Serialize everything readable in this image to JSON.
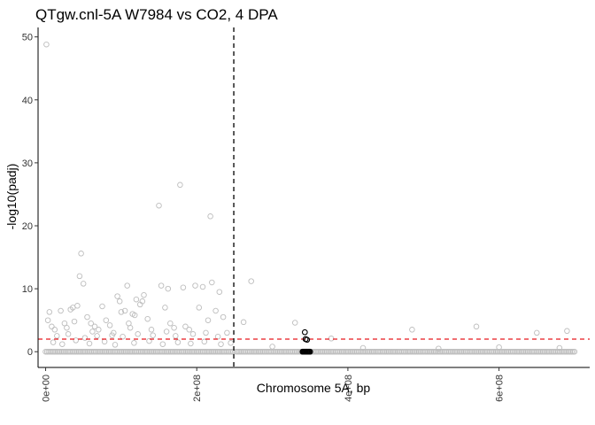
{
  "chart_data": {
    "type": "scatter",
    "title": "QTgw.cnl-5A W7984 vs CO2, 4 DPA",
    "xlabel": "Chromosome 5A, bp",
    "ylabel": "-log10(padj)",
    "xlim": [
      -10000000,
      720000000
    ],
    "ylim": [
      -2.5,
      51.5
    ],
    "x_ticks": [
      0,
      200000000,
      400000000,
      600000000
    ],
    "x_tick_labels": [
      "0e+00",
      "2e+08",
      "4e+08",
      "6e+08"
    ],
    "y_ticks": [
      0,
      10,
      20,
      30,
      40,
      50
    ],
    "y_tick_labels": [
      "0",
      "10",
      "20",
      "30",
      "40",
      "50"
    ],
    "grid": false,
    "legend": "none",
    "colors": {
      "points": "#bdbdbd",
      "highlight": "#000000",
      "threshold": "#e8191f",
      "vline": "#000000"
    },
    "threshold_y": 2,
    "vline_x": 249000000,
    "series": [
      {
        "points": [
          [
            1000000,
            48.8
          ],
          [
            5000000,
            6.3
          ],
          [
            20000000,
            6.5
          ],
          [
            33000000,
            6.7
          ],
          [
            45000000,
            12
          ],
          [
            50000000,
            10.8
          ],
          [
            47000000,
            15.6
          ],
          [
            36000000,
            7
          ],
          [
            42000000,
            7.3
          ],
          [
            3000000,
            5
          ],
          [
            8000000,
            4
          ],
          [
            12000000,
            3.5
          ],
          [
            25000000,
            4.5
          ],
          [
            28000000,
            3.8
          ],
          [
            38000000,
            4.8
          ],
          [
            55000000,
            5.5
          ],
          [
            60000000,
            4.5
          ],
          [
            62000000,
            3.2
          ],
          [
            65000000,
            4
          ],
          [
            70000000,
            3.5
          ],
          [
            75000000,
            7.2
          ],
          [
            80000000,
            5
          ],
          [
            85000000,
            4.2
          ],
          [
            90000000,
            3
          ],
          [
            95000000,
            8.8
          ],
          [
            98000000,
            8
          ],
          [
            100000000,
            6.3
          ],
          [
            105000000,
            6.5
          ],
          [
            108000000,
            10.5
          ],
          [
            110000000,
            4.5
          ],
          [
            112000000,
            3.8
          ],
          [
            115000000,
            6
          ],
          [
            118000000,
            5.8
          ],
          [
            120000000,
            8.3
          ],
          [
            125000000,
            7.5
          ],
          [
            128000000,
            8
          ],
          [
            130000000,
            9
          ],
          [
            135000000,
            5.2
          ],
          [
            140000000,
            3.5
          ],
          [
            150000000,
            23.2
          ],
          [
            153000000,
            10.5
          ],
          [
            158000000,
            7
          ],
          [
            162000000,
            10
          ],
          [
            165000000,
            4.5
          ],
          [
            170000000,
            3.8
          ],
          [
            178000000,
            26.5
          ],
          [
            182000000,
            10.2
          ],
          [
            185000000,
            4
          ],
          [
            190000000,
            3.5
          ],
          [
            198000000,
            10.5
          ],
          [
            203000000,
            7
          ],
          [
            208000000,
            10.3
          ],
          [
            215000000,
            5
          ],
          [
            218000000,
            21.5
          ],
          [
            220000000,
            11
          ],
          [
            225000000,
            6.5
          ],
          [
            230000000,
            9.5
          ],
          [
            235000000,
            5.5
          ],
          [
            240000000,
            3
          ],
          [
            15000000,
            2.5
          ],
          [
            30000000,
            2.8
          ],
          [
            52000000,
            2.2
          ],
          [
            68000000,
            2.5
          ],
          [
            88000000,
            2.6
          ],
          [
            102000000,
            2.4
          ],
          [
            122000000,
            2.8
          ],
          [
            142000000,
            2.6
          ],
          [
            160000000,
            3.2
          ],
          [
            172000000,
            2.5
          ],
          [
            195000000,
            2.8
          ],
          [
            212000000,
            3
          ],
          [
            228000000,
            2.4
          ],
          [
            10000000,
            1.5
          ],
          [
            22000000,
            1.2
          ],
          [
            40000000,
            1.8
          ],
          [
            58000000,
            1.3
          ],
          [
            78000000,
            1.6
          ],
          [
            92000000,
            1.1
          ],
          [
            117000000,
            1.4
          ],
          [
            137000000,
            1.7
          ],
          [
            155000000,
            1.2
          ],
          [
            175000000,
            1.5
          ],
          [
            192000000,
            1.3
          ],
          [
            210000000,
            1.6
          ],
          [
            232000000,
            1.2
          ],
          [
            245000000,
            1.4
          ],
          [
            262000000,
            4.7
          ],
          [
            272000000,
            11.2
          ],
          [
            330000000,
            4.6
          ],
          [
            345000000,
            2
          ],
          [
            378000000,
            2.1
          ],
          [
            485000000,
            3.5
          ],
          [
            570000000,
            4
          ],
          [
            650000000,
            3
          ],
          [
            690000000,
            3.3
          ],
          [
            300000000,
            0.8
          ],
          [
            420000000,
            0.6
          ],
          [
            520000000,
            0.5
          ],
          [
            600000000,
            0.7
          ],
          [
            680000000,
            0.6
          ]
        ],
        "baseline_ranges": [
          [
            0,
            248000000
          ],
          [
            252000000,
            700000000
          ]
        ]
      },
      {
        "points": [
          [
            343000000,
            3.1
          ],
          [
            344000000,
            2.0
          ],
          [
            346000000,
            1.9
          ],
          [
            340000000,
            0
          ],
          [
            341000000,
            0
          ],
          [
            342000000,
            0
          ],
          [
            343000000,
            0
          ],
          [
            344000000,
            0
          ],
          [
            345000000,
            0
          ],
          [
            346000000,
            0
          ],
          [
            347000000,
            0
          ],
          [
            348000000,
            0
          ],
          [
            349000000,
            0
          ],
          [
            350000000,
            0
          ]
        ]
      }
    ]
  }
}
